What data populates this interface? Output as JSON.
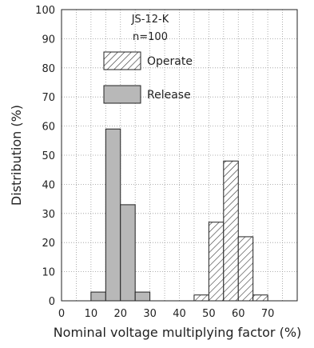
{
  "chart_data": {
    "type": "bar",
    "annotations": [
      "JS-12-K",
      "n=100"
    ],
    "xlabel": "Nominal voltage multiplying factor (%)",
    "ylabel": "Distribution (%)",
    "xlim": [
      0,
      80
    ],
    "ylim": [
      0,
      100
    ],
    "xticks": [
      0,
      10,
      20,
      30,
      40,
      50,
      60,
      70
    ],
    "yticks": [
      0,
      10,
      20,
      30,
      40,
      50,
      60,
      70,
      80,
      90,
      100
    ],
    "grid": true,
    "legend_position": "upper-middle",
    "bin_width": 5,
    "series": [
      {
        "name": "Operate",
        "style": "hatched",
        "bins": [
          {
            "x": 45,
            "value": 2
          },
          {
            "x": 50,
            "value": 27
          },
          {
            "x": 55,
            "value": 48
          },
          {
            "x": 60,
            "value": 22
          },
          {
            "x": 65,
            "value": 2
          }
        ]
      },
      {
        "name": "Release",
        "style": "solid",
        "color": "#b8b8b8",
        "bins": [
          {
            "x": 10,
            "value": 3
          },
          {
            "x": 15,
            "value": 59
          },
          {
            "x": 20,
            "value": 33
          },
          {
            "x": 25,
            "value": 3
          }
        ]
      }
    ]
  }
}
